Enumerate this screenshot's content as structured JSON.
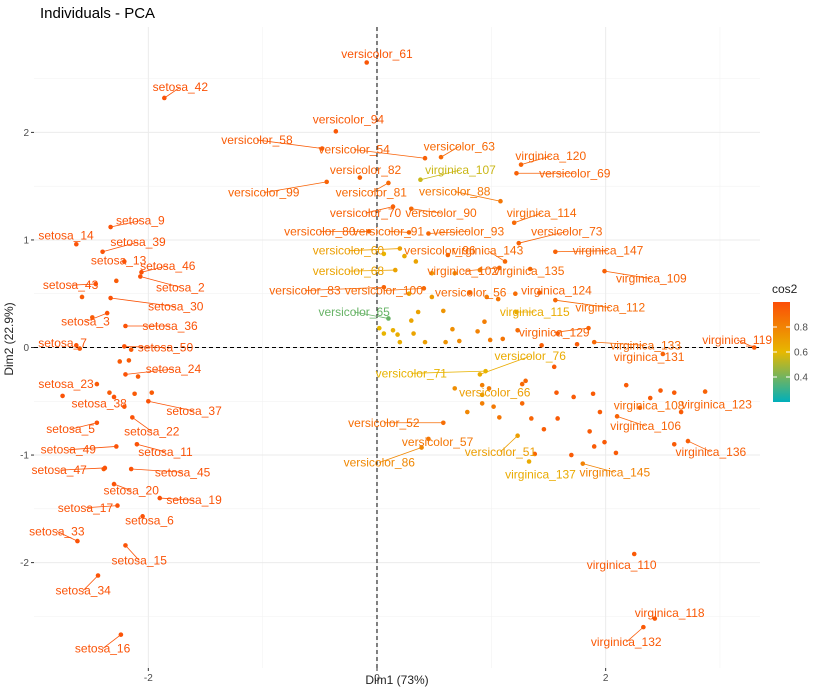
{
  "chart_data": {
    "type": "scatter",
    "title": "Individuals - PCA",
    "xlabel": "Dim1 (73%)",
    "ylabel": "Dim2 (22.9%)",
    "xlim": [
      -3.0,
      3.35
    ],
    "ylim": [
      -2.98,
      2.98
    ],
    "x_ticks": [
      -2,
      0,
      2
    ],
    "y_ticks": [
      -2,
      -1,
      0,
      1,
      2
    ],
    "grid": true,
    "reference_lines": [
      {
        "axis": "x",
        "value": 0,
        "style": "dashed"
      },
      {
        "axis": "y",
        "value": 0,
        "style": "dashed"
      }
    ],
    "legend": {
      "title": "cos2",
      "position": "right",
      "ticks": [
        0.4,
        0.6,
        0.8
      ],
      "range": [
        0.2,
        1.0
      ],
      "colors": [
        "#00AFBB",
        "#E7B800",
        "#FC4E07"
      ]
    },
    "points": [
      {
        "label": "versicolor_61",
        "x": -0.09,
        "y": 2.65,
        "cos2": 0.97,
        "lx": 0.0,
        "ly": 2.73
      },
      {
        "label": "setosa_42",
        "x": -1.86,
        "y": 2.32,
        "cos2": 0.98,
        "lx": -1.72,
        "ly": 2.42
      },
      {
        "label": "versicolor_94",
        "x": -0.36,
        "y": 2.01,
        "cos2": 0.96,
        "lx": -0.25,
        "ly": 2.12
      },
      {
        "label": "versicolor_58",
        "x": -0.48,
        "y": 1.85,
        "cos2": 0.95,
        "lx": -1.05,
        "ly": 1.93
      },
      {
        "label": "versicolor_54",
        "x": 0.42,
        "y": 1.76,
        "cos2": 0.93,
        "lx": -0.2,
        "ly": 1.84
      },
      {
        "label": "versicolor_63",
        "x": 0.56,
        "y": 1.77,
        "cos2": 0.9,
        "lx": 0.72,
        "ly": 1.87
      },
      {
        "label": "virginica_120",
        "x": 1.26,
        "y": 1.7,
        "cos2": 0.92,
        "lx": 1.52,
        "ly": 1.78
      },
      {
        "label": "versicolor_69",
        "x": 1.22,
        "y": 1.62,
        "cos2": 0.93,
        "lx": 1.73,
        "ly": 1.62
      },
      {
        "label": "versicolor_82",
        "x": -0.15,
        "y": 1.58,
        "cos2": 0.92,
        "lx": -0.1,
        "ly": 1.65
      },
      {
        "label": "virginica_107",
        "x": 0.38,
        "y": 1.56,
        "cos2": 0.55,
        "lx": 0.73,
        "ly": 1.65
      },
      {
        "label": "versicolor_99",
        "x": -0.44,
        "y": 1.54,
        "cos2": 0.92,
        "lx": -0.99,
        "ly": 1.44
      },
      {
        "label": "versicolor_81",
        "x": 0.1,
        "y": 1.53,
        "cos2": 0.9,
        "lx": -0.05,
        "ly": 1.44
      },
      {
        "label": "versicolor_88",
        "x": 1.08,
        "y": 1.36,
        "cos2": 0.85,
        "lx": 0.68,
        "ly": 1.45
      },
      {
        "label": "versicolor_70",
        "x": 0.14,
        "y": 1.31,
        "cos2": 0.93,
        "lx": -0.1,
        "ly": 1.25
      },
      {
        "label": "versicolor_90",
        "x": 0.3,
        "y": 1.29,
        "cos2": 0.9,
        "lx": 0.56,
        "ly": 1.25
      },
      {
        "label": "virginica_114",
        "x": 1.2,
        "y": 1.16,
        "cos2": 0.9,
        "lx": 1.44,
        "ly": 1.25
      },
      {
        "label": "setosa_9",
        "x": -2.33,
        "y": 1.12,
        "cos2": 0.98,
        "lx": -2.07,
        "ly": 1.18
      },
      {
        "label": "versicolor_80",
        "x": -0.07,
        "y": 1.08,
        "cos2": 0.92,
        "lx": -0.5,
        "ly": 1.08
      },
      {
        "label": "versicolor_91",
        "x": 0.28,
        "y": 1.07,
        "cos2": 0.9,
        "lx": 0.1,
        "ly": 1.08
      },
      {
        "label": "versicolor_93",
        "x": 0.45,
        "y": 1.06,
        "cos2": 0.9,
        "lx": 0.8,
        "ly": 1.08
      },
      {
        "label": "versicolor_73",
        "x": 1.24,
        "y": 0.97,
        "cos2": 0.92,
        "lx": 1.66,
        "ly": 1.08
      },
      {
        "label": "setosa_14",
        "x": -2.63,
        "y": 0.96,
        "cos2": 0.98,
        "lx": -2.72,
        "ly": 1.04
      },
      {
        "label": "setosa_39",
        "x": -2.4,
        "y": 0.89,
        "cos2": 0.98,
        "lx": -2.09,
        "ly": 0.98
      },
      {
        "label": "virginica_147",
        "x": 1.56,
        "y": 0.89,
        "cos2": 0.92,
        "lx": 2.02,
        "ly": 0.9
      },
      {
        "label": "versicolor_60",
        "x": 0.2,
        "y": 0.92,
        "cos2": 0.7,
        "lx": -0.25,
        "ly": 0.9
      },
      {
        "label": "versicolor_96",
        "x": 0.62,
        "y": 0.86,
        "cos2": 0.9,
        "lx": 0.55,
        "ly": 0.9
      },
      {
        "label": "virginica_143",
        "x": 1.12,
        "y": 0.8,
        "cos2": 0.9,
        "lx": 0.97,
        "ly": 0.9
      },
      {
        "label": "setosa_13",
        "x": -2.21,
        "y": 0.8,
        "cos2": 0.98,
        "lx": -2.26,
        "ly": 0.81
      },
      {
        "label": "setosa_46",
        "x": -2.06,
        "y": 0.7,
        "cos2": 0.98,
        "lx": -1.83,
        "ly": 0.76
      },
      {
        "label": "versicolor_68",
        "x": 0.16,
        "y": 0.72,
        "cos2": 0.68,
        "lx": -0.25,
        "ly": 0.71
      },
      {
        "label": "virginica_102",
        "x": 1.07,
        "y": 0.74,
        "cos2": 0.9,
        "lx": 0.75,
        "ly": 0.71
      },
      {
        "label": "virginica_135",
        "x": 1.34,
        "y": 0.73,
        "cos2": 0.9,
        "lx": 1.33,
        "ly": 0.71
      },
      {
        "label": "virginica_109",
        "x": 1.99,
        "y": 0.71,
        "cos2": 0.93,
        "lx": 2.4,
        "ly": 0.64
      },
      {
        "label": "setosa_2",
        "x": -2.07,
        "y": 0.66,
        "cos2": 0.98,
        "lx": -1.72,
        "ly": 0.56
      },
      {
        "label": "setosa_43",
        "x": -2.46,
        "y": 0.59,
        "cos2": 0.98,
        "lx": -2.68,
        "ly": 0.58
      },
      {
        "label": "versicolor_83",
        "x": 0.06,
        "y": 0.56,
        "cos2": 0.92,
        "lx": -0.63,
        "ly": 0.53
      },
      {
        "label": "versicolor_100",
        "x": 0.41,
        "y": 0.55,
        "cos2": 0.9,
        "lx": 0.06,
        "ly": 0.53
      },
      {
        "label": "versicolor_56",
        "x": 0.81,
        "y": 0.51,
        "cos2": 0.9,
        "lx": 0.82,
        "ly": 0.51
      },
      {
        "label": "virginica_124",
        "x": 1.42,
        "y": 0.51,
        "cos2": 0.92,
        "lx": 1.57,
        "ly": 0.53
      },
      {
        "label": "setosa_30",
        "x": -2.33,
        "y": 0.46,
        "cos2": 0.98,
        "lx": -1.76,
        "ly": 0.38
      },
      {
        "label": "virginica_112",
        "x": 1.56,
        "y": 0.44,
        "cos2": 0.9,
        "lx": 2.04,
        "ly": 0.37
      },
      {
        "label": "versicolor_65",
        "x": 0.1,
        "y": 0.27,
        "cos2": 0.38,
        "lx": -0.2,
        "ly": 0.33
      },
      {
        "label": "virginica_115",
        "x": 1.22,
        "y": 0.33,
        "cos2": 0.65,
        "lx": 1.38,
        "ly": 0.33
      },
      {
        "label": "setosa_3",
        "x": -2.36,
        "y": 0.32,
        "cos2": 0.98,
        "lx": -2.55,
        "ly": 0.24
      },
      {
        "label": "setosa_36",
        "x": -2.2,
        "y": 0.2,
        "cos2": 0.98,
        "lx": -1.81,
        "ly": 0.2
      },
      {
        "label": "virginica_129",
        "x": 1.85,
        "y": 0.18,
        "cos2": 0.92,
        "lx": 1.55,
        "ly": 0.14
      },
      {
        "label": "setosa_7",
        "x": -2.63,
        "y": 0.02,
        "cos2": 0.98,
        "lx": -2.75,
        "ly": 0.04
      },
      {
        "label": "setosa_50",
        "x": -2.21,
        "y": 0.01,
        "cos2": 0.98,
        "lx": -1.85,
        "ly": 0.0
      },
      {
        "label": "virginica_133",
        "x": 1.9,
        "y": 0.05,
        "cos2": 0.9,
        "lx": 2.35,
        "ly": 0.02
      },
      {
        "label": "virginica_119",
        "x": 3.3,
        "y": 0.0,
        "cos2": 0.96,
        "lx": 3.15,
        "ly": 0.07
      },
      {
        "label": "virginica_131",
        "x": 2.5,
        "y": -0.06,
        "cos2": 0.92,
        "lx": 2.38,
        "ly": -0.09
      },
      {
        "label": "versicolor_76",
        "x": 0.9,
        "y": -0.25,
        "cos2": 0.65,
        "lx": 1.34,
        "ly": -0.08
      },
      {
        "label": "setosa_24",
        "x": -2.2,
        "y": -0.25,
        "cos2": 0.98,
        "lx": -1.78,
        "ly": -0.2
      },
      {
        "label": "versicolor_71",
        "x": 0.95,
        "y": -0.22,
        "cos2": 0.62,
        "lx": 0.3,
        "ly": -0.24
      },
      {
        "label": "setosa_23",
        "x": -2.75,
        "y": -0.45,
        "cos2": 0.98,
        "lx": -2.72,
        "ly": -0.34
      },
      {
        "label": "setosa_38",
        "x": -2.3,
        "y": -0.46,
        "cos2": 0.98,
        "lx": -2.43,
        "ly": -0.52
      },
      {
        "label": "versicolor_66",
        "x": 0.92,
        "y": -0.44,
        "cos2": 0.7,
        "lx": 1.03,
        "ly": -0.42
      },
      {
        "label": "virginica_108",
        "x": 2.3,
        "y": -0.56,
        "cos2": 0.9,
        "lx": 2.38,
        "ly": -0.54
      },
      {
        "label": "virginica_123",
        "x": 2.87,
        "y": -0.41,
        "cos2": 0.92,
        "lx": 2.97,
        "ly": -0.53
      },
      {
        "label": "setosa_37",
        "x": -2.0,
        "y": -0.5,
        "cos2": 0.98,
        "lx": -1.6,
        "ly": -0.59
      },
      {
        "label": "setosa_5",
        "x": -2.45,
        "y": -0.7,
        "cos2": 0.98,
        "lx": -2.68,
        "ly": -0.76
      },
      {
        "label": "setosa_22",
        "x": -2.14,
        "y": -0.65,
        "cos2": 0.98,
        "lx": -1.97,
        "ly": -0.78
      },
      {
        "label": "versicolor_52",
        "x": 0.58,
        "y": -0.7,
        "cos2": 0.88,
        "lx": 0.06,
        "ly": -0.7
      },
      {
        "label": "virginica_106",
        "x": 2.1,
        "y": -0.64,
        "cos2": 0.92,
        "lx": 2.35,
        "ly": -0.73
      },
      {
        "label": "versicolor_57",
        "x": 0.45,
        "y": -0.85,
        "cos2": 0.85,
        "lx": 0.53,
        "ly": -0.88
      },
      {
        "label": "setosa_49",
        "x": -2.28,
        "y": -0.92,
        "cos2": 0.98,
        "lx": -2.7,
        "ly": -0.95
      },
      {
        "label": "setosa_11",
        "x": -2.1,
        "y": -0.9,
        "cos2": 0.98,
        "lx": -1.85,
        "ly": -0.97
      },
      {
        "label": "versicolor_51",
        "x": 1.23,
        "y": -0.82,
        "cos2": 0.7,
        "lx": 1.08,
        "ly": -0.97
      },
      {
        "label": "virginica_136",
        "x": 2.72,
        "y": -0.87,
        "cos2": 0.94,
        "lx": 2.92,
        "ly": -0.97
      },
      {
        "label": "versicolor_86",
        "x": 0.39,
        "y": -0.93,
        "cos2": 0.78,
        "lx": 0.02,
        "ly": -1.07
      },
      {
        "label": "setosa_47",
        "x": -2.38,
        "y": -1.12,
        "cos2": 0.98,
        "lx": -2.78,
        "ly": -1.14
      },
      {
        "label": "setosa_45",
        "x": -2.15,
        "y": -1.13,
        "cos2": 0.98,
        "lx": -1.7,
        "ly": -1.16
      },
      {
        "label": "virginica_137",
        "x": 1.33,
        "y": -1.06,
        "cos2": 0.65,
        "lx": 1.43,
        "ly": -1.18
      },
      {
        "label": "virginica_145",
        "x": 1.8,
        "y": -1.08,
        "cos2": 0.8,
        "lx": 2.08,
        "ly": -1.16
      },
      {
        "label": "setosa_20",
        "x": -2.3,
        "y": -1.27,
        "cos2": 0.98,
        "lx": -2.15,
        "ly": -1.33
      },
      {
        "label": "setosa_19",
        "x": -1.9,
        "y": -1.4,
        "cos2": 0.98,
        "lx": -1.6,
        "ly": -1.42
      },
      {
        "label": "setosa_17",
        "x": -2.27,
        "y": -1.47,
        "cos2": 0.98,
        "lx": -2.55,
        "ly": -1.49
      },
      {
        "label": "setosa_6",
        "x": -2.05,
        "y": -1.57,
        "cos2": 0.98,
        "lx": -1.99,
        "ly": -1.61
      },
      {
        "label": "setosa_33",
        "x": -2.62,
        "y": -1.8,
        "cos2": 0.98,
        "lx": -2.8,
        "ly": -1.71
      },
      {
        "label": "setosa_15",
        "x": -2.2,
        "y": -1.84,
        "cos2": 0.98,
        "lx": -2.08,
        "ly": -1.98
      },
      {
        "label": "virginica_110",
        "x": 2.25,
        "y": -1.92,
        "cos2": 0.96,
        "lx": 2.14,
        "ly": -2.02
      },
      {
        "label": "setosa_34",
        "x": -2.44,
        "y": -2.12,
        "cos2": 0.98,
        "lx": -2.57,
        "ly": -2.26
      },
      {
        "label": "virginica_118",
        "x": 2.43,
        "y": -2.52,
        "cos2": 0.96,
        "lx": 2.56,
        "ly": -2.47
      },
      {
        "label": "virginica_132",
        "x": 2.33,
        "y": -2.6,
        "cos2": 0.96,
        "lx": 2.18,
        "ly": -2.74
      },
      {
        "label": "setosa_16",
        "x": -2.24,
        "y": -2.67,
        "cos2": 0.98,
        "lx": -2.4,
        "ly": -2.8
      }
    ],
    "unlabeled_points": [
      [
        -2.58,
        0.47
      ],
      [
        -2.28,
        0.62
      ],
      [
        -2.49,
        0.28
      ],
      [
        -2.25,
        -0.13
      ],
      [
        -2.17,
        -0.12
      ],
      [
        -2.45,
        -0.34
      ],
      [
        -2.34,
        -0.42
      ],
      [
        -1.97,
        -0.42
      ],
      [
        -2.12,
        -0.43
      ],
      [
        -2.21,
        -0.55
      ],
      [
        -2.39,
        -1.13
      ],
      [
        -2.09,
        -0.27
      ],
      [
        -2.6,
        -0.01
      ],
      [
        -2.15,
        -0.02
      ],
      [
        0.24,
        0.85
      ],
      [
        0.06,
        0.87
      ],
      [
        0.34,
        0.8
      ],
      [
        0.48,
        0.69
      ],
      [
        0.28,
        0.5
      ],
      [
        0.48,
        0.47
      ],
      [
        0.68,
        0.69
      ],
      [
        0.9,
        0.72
      ],
      [
        0.96,
        0.47
      ],
      [
        1.06,
        0.45
      ],
      [
        1.21,
        0.5
      ],
      [
        0.58,
        0.34
      ],
      [
        0.6,
        0.05
      ],
      [
        0.72,
        0.06
      ],
      [
        0.88,
        0.15
      ],
      [
        0.94,
        0.24
      ],
      [
        0.99,
        0.07
      ],
      [
        1.1,
        0.08
      ],
      [
        0.32,
        0.13
      ],
      [
        0.42,
        0.05
      ],
      [
        0.3,
        0.25
      ],
      [
        0.36,
        0.33
      ],
      [
        0.14,
        0.16
      ],
      [
        0.18,
        0.12
      ],
      [
        0.02,
        0.18
      ],
      [
        0.06,
        0.13
      ],
      [
        0.2,
        0.05
      ],
      [
        0.66,
        0.17
      ],
      [
        1.23,
        0.16
      ],
      [
        1.44,
        0.02
      ],
      [
        1.58,
        0.13
      ],
      [
        1.75,
        0.03
      ],
      [
        0.68,
        -0.38
      ],
      [
        0.92,
        -0.52
      ],
      [
        0.98,
        -0.38
      ],
      [
        1.3,
        -0.31
      ],
      [
        1.55,
        -0.18
      ],
      [
        1.57,
        -0.42
      ],
      [
        1.72,
        -0.46
      ],
      [
        1.89,
        -0.43
      ],
      [
        1.95,
        -0.6
      ],
      [
        2.18,
        -0.35
      ],
      [
        2.39,
        -0.47
      ],
      [
        2.48,
        -0.4
      ],
      [
        2.6,
        -0.42
      ],
      [
        1.27,
        -0.34
      ],
      [
        1.02,
        -0.55
      ],
      [
        1.35,
        -0.66
      ],
      [
        1.58,
        -0.66
      ],
      [
        1.86,
        -0.78
      ],
      [
        1.9,
        -0.92
      ],
      [
        1.99,
        -0.88
      ],
      [
        2.09,
        -0.98
      ],
      [
        1.7,
        -1.0
      ],
      [
        1.38,
        -0.99
      ],
      [
        1.46,
        -0.76
      ],
      [
        2.6,
        -0.9
      ],
      [
        2.66,
        -0.6
      ],
      [
        0.79,
        -0.6
      ],
      [
        0.92,
        -0.35
      ],
      [
        1.07,
        -0.65
      ],
      [
        1.27,
        -0.52
      ]
    ]
  }
}
